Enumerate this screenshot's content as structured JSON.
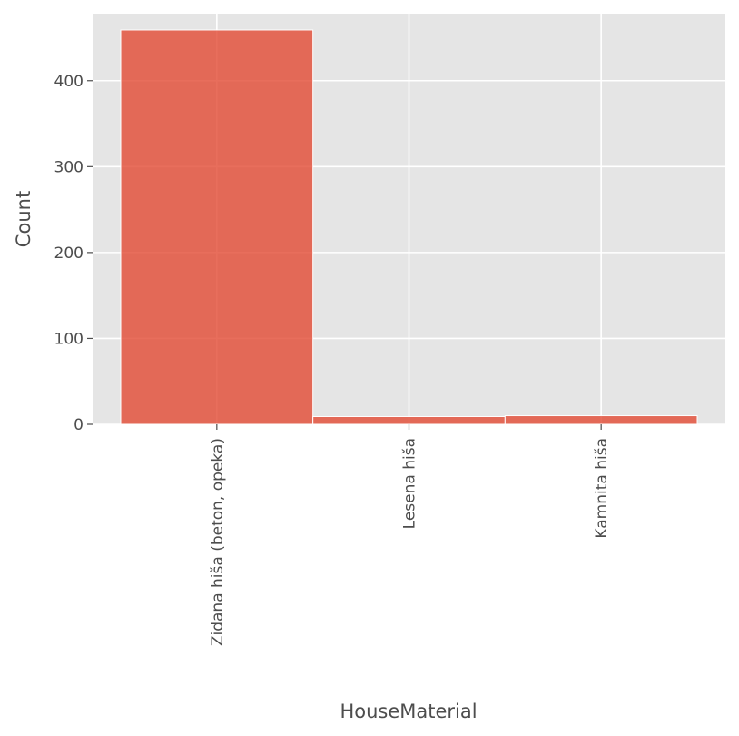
{
  "chart_data": {
    "type": "bar",
    "categories": [
      "Zidana hiša (beton, opeka)",
      "Lesena hiša",
      "Kamnita hiša"
    ],
    "values": [
      459,
      9,
      10
    ],
    "xlabel": "HouseMaterial",
    "ylabel": "Count",
    "ylim": [
      0,
      478
    ],
    "yticks": [
      0,
      100,
      200,
      300,
      400
    ],
    "grid": true,
    "colors": {
      "bar": "#e24a33",
      "bar_opacity": 0.8,
      "plot_background": "#e5e5e5",
      "grid": "#ffffff",
      "text": "#4d4d4d"
    }
  }
}
